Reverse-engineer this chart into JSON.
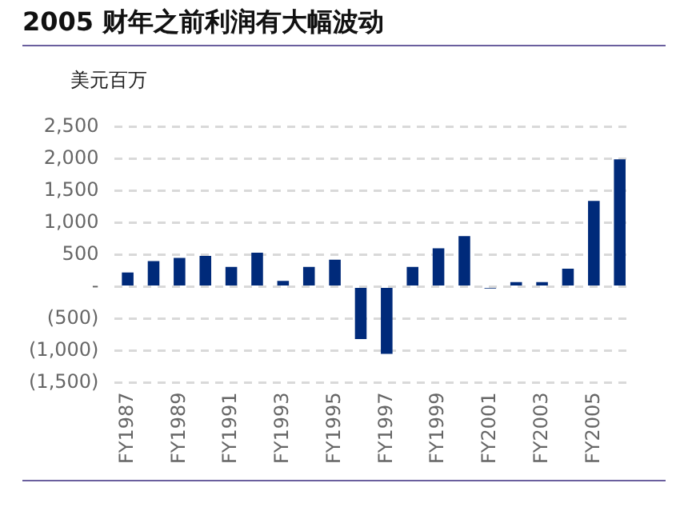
{
  "chart_data": {
    "type": "bar",
    "title": "2005 财年之前利润有大幅波动",
    "ylabel": "美元百万",
    "categories": [
      "FY1987",
      null,
      "FY1989",
      null,
      "FY1991",
      null,
      "FY1993",
      null,
      "FY1995",
      null,
      "FY1997",
      null,
      "FY1999",
      null,
      "FY2001",
      null,
      "FY2003",
      null,
      "FY2005",
      null
    ],
    "values": [
      220,
      400,
      450,
      480,
      310,
      530,
      90,
      310,
      420,
      -820,
      -1050,
      310,
      600,
      790,
      -30,
      70,
      70,
      280,
      1340,
      1990
    ],
    "color": "#002a7a",
    "ylim": [
      -1500,
      2500
    ],
    "yticks": [
      {
        "value": -1500,
        "label": "(1,500)"
      },
      {
        "value": -1000,
        "label": "(1,000)"
      },
      {
        "value": -500,
        "label": "(500)"
      },
      {
        "value": 0,
        "label": "-"
      },
      {
        "value": 500,
        "label": "500"
      },
      {
        "value": 1000,
        "label": "1,000"
      },
      {
        "value": 1500,
        "label": "1,500"
      },
      {
        "value": 2000,
        "label": "2,000"
      },
      {
        "value": 2500,
        "label": "2,500"
      }
    ],
    "grid": "y",
    "legend": false
  }
}
